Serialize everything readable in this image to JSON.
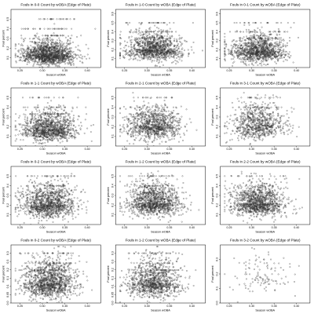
{
  "figure": {
    "panels": [
      {
        "title": "Fouls in 0-0 Count by wOBA (Edge of Plate)",
        "xlabel": "Season wOBA",
        "ylabel": "Foul percent"
      },
      {
        "title": "Fouls in 1-0 Count by wOBA (Edge of Plate)",
        "xlabel": "Season wOBA",
        "ylabel": "Foul percent"
      },
      {
        "title": "Fouls in 0-1 Count by wOBA (Edge of Plate)",
        "xlabel": "Season wOBA",
        "ylabel": "Foul percent"
      },
      {
        "title": "Fouls in 1-1 Count by wOBA (Edge of Plate)",
        "xlabel": "Season wOBA",
        "ylabel": "Foul percent"
      },
      {
        "title": "Fouls in 2-1 Count by wOBA (Edge of Plate)",
        "xlabel": "Season wOBA",
        "ylabel": "Foul percent"
      },
      {
        "title": "Fouls in 3-1 Count by wOBA (Edge of Plate)",
        "xlabel": "Season wOBA",
        "ylabel": "Foul percent"
      },
      {
        "title": "Fouls in 0-2 Count by wOBA (Edge of Plate)",
        "xlabel": "Season wOBA",
        "ylabel": "Foul percent"
      },
      {
        "title": "Fouls in 1-2 Count by wOBA (Edge of Plate)",
        "xlabel": "Season wOBA",
        "ylabel": "Foul percent"
      },
      {
        "title": "Fouls in 2-2 Count by wOBA (Edge of Plate)",
        "xlabel": "Season wOBA",
        "ylabel": "Foul percent"
      },
      {
        "title": "Fouls in 0-2 Count by wOBA (Edge of Plate)",
        "xlabel": "Season wOBA",
        "ylabel": "Foul percent"
      },
      {
        "title": "Fouls in 1-2 Count by wOBA (Edge of Plate)",
        "xlabel": "Season wOBA",
        "ylabel": "Foul percent"
      },
      {
        "title": "Fouls in 3-2 Count by wOBA (Edge of Plate)",
        "xlabel": "Season wOBA",
        "ylabel": "Foul percent"
      }
    ]
  },
  "chart_data": [
    {
      "type": "scatter",
      "title": "Fouls in 0-0 Count by wOBA (Edge of Plate)",
      "xlabel": "Season wOBA",
      "ylabel": "Foul percent",
      "xlim": [
        0.23,
        0.43
      ],
      "ylim": [
        0.0,
        0.6
      ],
      "xticks": [
        0.25,
        0.3,
        0.35,
        0.4
      ],
      "yticks": [
        0.1,
        0.2,
        0.3,
        0.4,
        0.5
      ],
      "color": "#333333",
      "grid": false,
      "points": {
        "count": 1500,
        "x_center": 0.315,
        "x_spread": 0.03,
        "y_center": 0.13,
        "y_spread": 0.07,
        "x_range": [
          0.24,
          0.44
        ],
        "y_range": [
          0.0,
          0.55
        ]
      }
    },
    {
      "type": "scatter",
      "title": "Fouls in 1-0 Count by wOBA (Edge of Plate)",
      "xlabel": "Season wOBA",
      "ylabel": "Foul percent",
      "xlim": [
        0.23,
        0.43
      ],
      "ylim": [
        0.0,
        0.65
      ],
      "xticks": [
        0.25,
        0.3,
        0.35,
        0.4
      ],
      "yticks": [
        0.1,
        0.2,
        0.3,
        0.4,
        0.5,
        0.6
      ],
      "color": "#333333",
      "grid": false,
      "points": {
        "count": 1200,
        "x_center": 0.315,
        "x_spread": 0.03,
        "y_center": 0.2,
        "y_spread": 0.08,
        "x_range": [
          0.24,
          0.44
        ],
        "y_range": [
          0.0,
          0.6
        ]
      }
    },
    {
      "type": "scatter",
      "title": "Fouls in 0-1 Count by wOBA (Edge of Plate)",
      "xlabel": "Season wOBA",
      "ylabel": "Foul percent",
      "xlim": [
        0.23,
        0.43
      ],
      "ylim": [
        0.0,
        0.65
      ],
      "xticks": [
        0.25,
        0.3,
        0.35,
        0.4
      ],
      "yticks": [
        0.1,
        0.2,
        0.3,
        0.4,
        0.5,
        0.6
      ],
      "color": "#333333",
      "grid": false,
      "points": {
        "count": 1200,
        "x_center": 0.315,
        "x_spread": 0.03,
        "y_center": 0.18,
        "y_spread": 0.08,
        "x_range": [
          0.24,
          0.44
        ],
        "y_range": [
          0.0,
          0.6
        ]
      }
    },
    {
      "type": "scatter",
      "title": "Fouls in 1-1 Count by wOBA (Edge of Plate)",
      "xlabel": "Season wOBA",
      "ylabel": "Foul percent",
      "xlim": [
        0.23,
        0.43
      ],
      "ylim": [
        0.0,
        0.6
      ],
      "xticks": [
        0.25,
        0.3,
        0.35,
        0.4
      ],
      "yticks": [
        0.1,
        0.2,
        0.3,
        0.4,
        0.5
      ],
      "color": "#333333",
      "grid": false,
      "points": {
        "count": 1200,
        "x_center": 0.315,
        "x_spread": 0.03,
        "y_center": 0.17,
        "y_spread": 0.08,
        "x_range": [
          0.24,
          0.44
        ],
        "y_range": [
          0.0,
          0.55
        ]
      }
    },
    {
      "type": "scatter",
      "title": "Fouls in 2-1 Count by wOBA (Edge of Plate)",
      "xlabel": "Season wOBA",
      "ylabel": "Foul percent",
      "xlim": [
        0.23,
        0.43
      ],
      "ylim": [
        0.0,
        0.6
      ],
      "xticks": [
        0.25,
        0.3,
        0.35,
        0.4
      ],
      "yticks": [
        0.1,
        0.2,
        0.3,
        0.4,
        0.5
      ],
      "color": "#333333",
      "grid": false,
      "points": {
        "count": 1000,
        "x_center": 0.315,
        "x_spread": 0.03,
        "y_center": 0.2,
        "y_spread": 0.09,
        "x_range": [
          0.24,
          0.44
        ],
        "y_range": [
          0.0,
          0.55
        ]
      }
    },
    {
      "type": "scatter",
      "title": "Fouls in 3-1 Count by wOBA (Edge of Plate)",
      "xlabel": "Season wOBA",
      "ylabel": "Foul percent",
      "xlim": [
        0.23,
        0.43
      ],
      "ylim": [
        0.0,
        0.6
      ],
      "xticks": [
        0.25,
        0.3,
        0.35,
        0.4
      ],
      "yticks": [
        0.1,
        0.2,
        0.3,
        0.4,
        0.5
      ],
      "color": "#333333",
      "grid": false,
      "points": {
        "count": 800,
        "x_center": 0.315,
        "x_spread": 0.03,
        "y_center": 0.22,
        "y_spread": 0.1,
        "x_range": [
          0.24,
          0.44
        ],
        "y_range": [
          0.0,
          0.55
        ]
      }
    },
    {
      "type": "scatter",
      "title": "Fouls in 0-2 Count by wOBA (Edge of Plate)",
      "xlabel": "Season wOBA",
      "ylabel": "Foul percent",
      "xlim": [
        0.23,
        0.43
      ],
      "ylim": [
        0.0,
        0.6
      ],
      "xticks": [
        0.25,
        0.3,
        0.35,
        0.4
      ],
      "yticks": [
        0.1,
        0.2,
        0.3,
        0.4,
        0.5
      ],
      "color": "#333333",
      "grid": false,
      "points": {
        "count": 1200,
        "x_center": 0.315,
        "x_spread": 0.03,
        "y_center": 0.2,
        "y_spread": 0.09,
        "x_range": [
          0.24,
          0.44
        ],
        "y_range": [
          0.0,
          0.55
        ]
      }
    },
    {
      "type": "scatter",
      "title": "Fouls in 1-2 Count by wOBA (Edge of Plate)",
      "xlabel": "Season wOBA",
      "ylabel": "Foul percent",
      "xlim": [
        0.23,
        0.43
      ],
      "ylim": [
        0.0,
        0.6
      ],
      "xticks": [
        0.25,
        0.3,
        0.35,
        0.4
      ],
      "yticks": [
        0.1,
        0.2,
        0.3,
        0.4,
        0.5
      ],
      "color": "#333333",
      "grid": false,
      "points": {
        "count": 1200,
        "x_center": 0.315,
        "x_spread": 0.03,
        "y_center": 0.22,
        "y_spread": 0.09,
        "x_range": [
          0.24,
          0.44
        ],
        "y_range": [
          0.0,
          0.55
        ]
      }
    },
    {
      "type": "scatter",
      "title": "Fouls in 2-2 Count by wOBA (Edge of Plate)",
      "xlabel": "Season wOBA",
      "ylabel": "Foul percent",
      "xlim": [
        0.23,
        0.43
      ],
      "ylim": [
        0.0,
        0.6
      ],
      "xticks": [
        0.25,
        0.3,
        0.35,
        0.4
      ],
      "yticks": [
        0.1,
        0.2,
        0.3,
        0.4,
        0.5
      ],
      "color": "#333333",
      "grid": false,
      "points": {
        "count": 1200,
        "x_center": 0.315,
        "x_spread": 0.03,
        "y_center": 0.22,
        "y_spread": 0.09,
        "x_range": [
          0.24,
          0.44
        ],
        "y_range": [
          0.0,
          0.55
        ]
      }
    },
    {
      "type": "scatter",
      "title": "Fouls in 0-2 Count by wOBA (Edge of Plate)",
      "xlabel": "Season wOBA",
      "ylabel": "Foul percent",
      "xlim": [
        0.23,
        0.43
      ],
      "ylim": [
        0.0,
        0.35
      ],
      "xticks": [
        0.25,
        0.3,
        0.35,
        0.4
      ],
      "yticks": [
        0.0,
        0.05,
        0.1,
        0.15,
        0.2,
        0.25,
        0.3
      ],
      "color": "#333333",
      "grid": false,
      "points": {
        "count": 1300,
        "x_center": 0.315,
        "x_spread": 0.03,
        "y_center": 0.12,
        "y_spread": 0.06,
        "x_range": [
          0.24,
          0.44
        ],
        "y_range": [
          0.0,
          0.34
        ]
      }
    },
    {
      "type": "scatter",
      "title": "Fouls in 1-2 Count by wOBA (Edge of Plate)",
      "xlabel": "Season wOBA",
      "ylabel": "Foul percent",
      "xlim": [
        0.23,
        0.43
      ],
      "ylim": [
        0.0,
        0.35
      ],
      "xticks": [
        0.25,
        0.3,
        0.35,
        0.4
      ],
      "yticks": [
        0.0,
        0.05,
        0.1,
        0.15,
        0.2,
        0.25,
        0.3
      ],
      "color": "#333333",
      "grid": false,
      "points": {
        "count": 1100,
        "x_center": 0.315,
        "x_spread": 0.03,
        "y_center": 0.12,
        "y_spread": 0.06,
        "x_range": [
          0.24,
          0.44
        ],
        "y_range": [
          0.0,
          0.34
        ]
      }
    },
    {
      "type": "scatter",
      "title": "Fouls in 3-2 Count by wOBA (Edge of Plate)",
      "xlabel": "Season wOBA",
      "ylabel": "Foul percent",
      "xlim": [
        0.23,
        0.43
      ],
      "ylim": [
        0.0,
        0.4
      ],
      "xticks": [
        0.25,
        0.3,
        0.35,
        0.4
      ],
      "yticks": [
        0.0,
        0.1,
        0.2,
        0.3
      ],
      "color": "#333333",
      "grid": false,
      "points": {
        "count": 120,
        "x_center": 0.32,
        "x_spread": 0.035,
        "y_center": 0.18,
        "y_spread": 0.08,
        "x_range": [
          0.24,
          0.44
        ],
        "y_range": [
          0.0,
          0.38
        ]
      }
    }
  ]
}
